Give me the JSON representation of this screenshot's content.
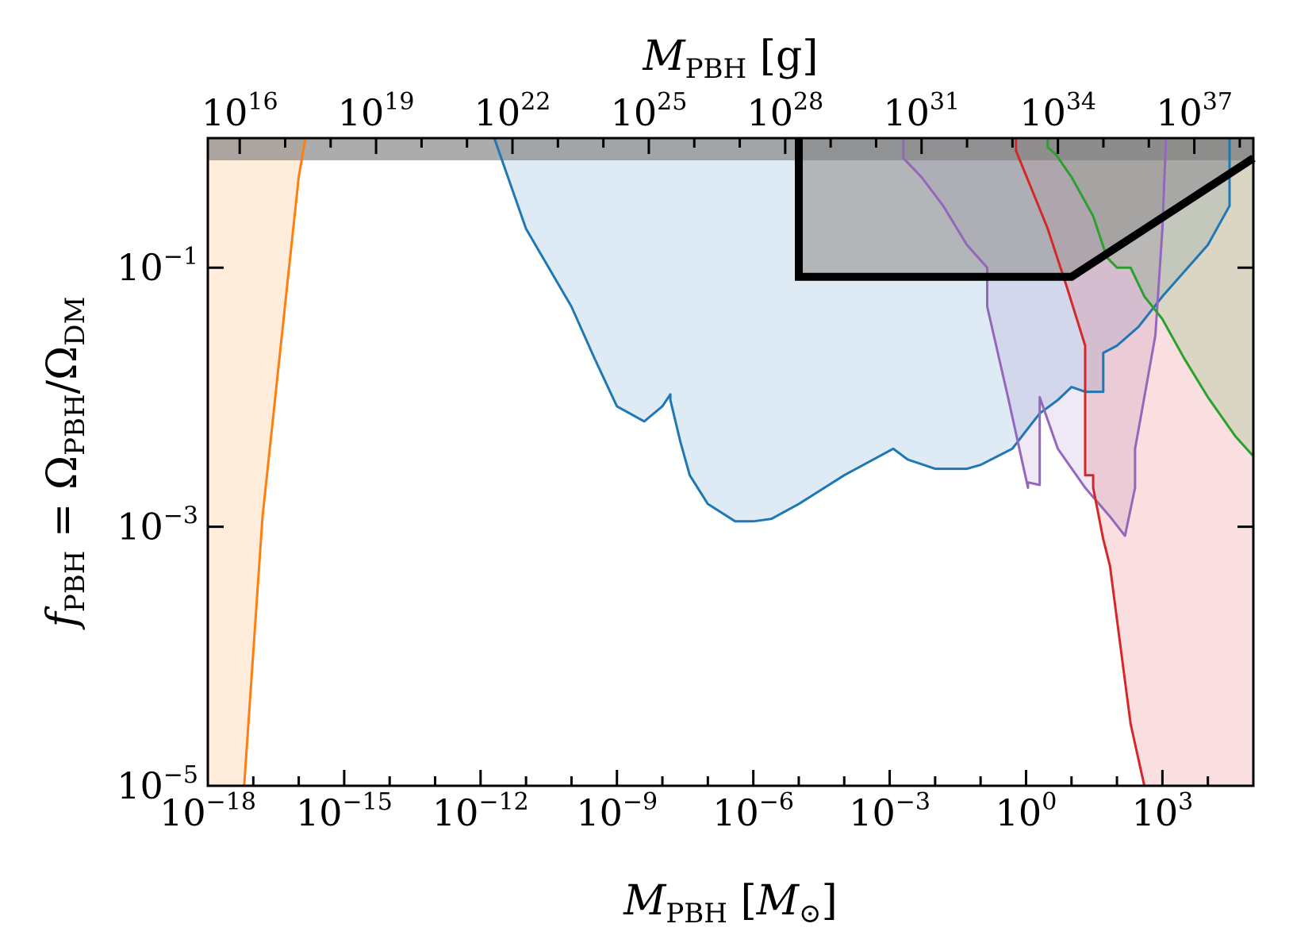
{
  "chart_data": {
    "type": "area",
    "title": "",
    "xlabel": {
      "main": "M",
      "sub": "PBH",
      "unit_main": "M",
      "unit_sub": "⊙"
    },
    "x2label": {
      "main": "M",
      "sub": "PBH",
      "unit": "g"
    },
    "ylabel": {
      "f": "f",
      "f_sub": "PBH",
      "eq": " = ",
      "omega": "Ω",
      "omega_sub1": "PBH",
      "slash": "/",
      "omega_sub2": "DM"
    },
    "xscale": "log",
    "yscale": "log",
    "xlim": [
      1e-18,
      100000.0
    ],
    "ylim": [
      1e-05,
      1
    ],
    "x_ticks": [
      {
        "base": "10",
        "exp": "−18",
        "value": 1e-18
      },
      {
        "base": "10",
        "exp": "−15",
        "value": 1e-15
      },
      {
        "base": "10",
        "exp": "−12",
        "value": 1e-12
      },
      {
        "base": "10",
        "exp": "−9",
        "value": 1e-09
      },
      {
        "base": "10",
        "exp": "−6",
        "value": 1e-06
      },
      {
        "base": "10",
        "exp": "−3",
        "value": 0.001
      },
      {
        "base": "10",
        "exp": "0",
        "value": 1
      },
      {
        "base": "10",
        "exp": "3",
        "value": 1000.0
      }
    ],
    "x2_ticks": [
      {
        "base": "10",
        "exp": "16",
        "value": 1e+16
      },
      {
        "base": "10",
        "exp": "19",
        "value": 1e+19
      },
      {
        "base": "10",
        "exp": "22",
        "value": 1e+22
      },
      {
        "base": "10",
        "exp": "25",
        "value": 1e+25
      },
      {
        "base": "10",
        "exp": "28",
        "value": 1e+28
      },
      {
        "base": "10",
        "exp": "31",
        "value": 1e+31
      },
      {
        "base": "10",
        "exp": "34",
        "value": 1e+34
      },
      {
        "base": "10",
        "exp": "37",
        "value": 1e+37
      }
    ],
    "x2_grams_per_msun": 1.989e+33,
    "y_ticks": [
      {
        "base": "10",
        "exp": "−1",
        "value": 0.1
      },
      {
        "base": "10",
        "exp": "−3",
        "value": 0.001
      },
      {
        "base": "10",
        "exp": "−5",
        "value": 1e-05
      }
    ],
    "grid": false,
    "series": [
      {
        "color": "#ff7f0e",
        "fill_alpha": 0.15,
        "x": [
          1e-18,
          6.3e-18,
          1.6e-17,
          1e-16,
          1.4e-16
        ],
        "y": [
          1e-05,
          1e-05,
          0.0012,
          0.5,
          1
        ]
      },
      {
        "color": "#1f77b4",
        "fill_alpha": 0.15,
        "x": [
          2e-12,
          1e-11,
          1e-10,
          3.2e-10,
          1e-09,
          4e-09,
          1e-08,
          1.5e-08,
          1.5e-08,
          2.5e-08,
          4e-08,
          1e-07,
          4e-07,
          1e-06,
          2.5e-06,
          1e-05,
          0.0001,
          0.0012,
          0.0025,
          0.01,
          0.05,
          0.1,
          0.5,
          1,
          2,
          5,
          10,
          20,
          50,
          50,
          100,
          300,
          1000.0,
          10000.0,
          30000.0,
          30000.0
        ],
        "y": [
          1,
          0.2,
          0.05,
          0.02,
          0.0085,
          0.0065,
          0.0085,
          0.0105,
          0.0095,
          0.0045,
          0.0025,
          0.0015,
          0.0011,
          0.0011,
          0.00115,
          0.0015,
          0.0025,
          0.004,
          0.0033,
          0.0028,
          0.0028,
          0.003,
          0.004,
          0.0055,
          0.0075,
          0.0095,
          0.012,
          0.011,
          0.011,
          0.022,
          0.025,
          0.035,
          0.06,
          0.15,
          0.3,
          1
        ]
      },
      {
        "color": "#9467bd",
        "fill_alpha": 0.15,
        "x": [
          0.002,
          0.002,
          0.005,
          0.015,
          0.05,
          0.14,
          0.14,
          0.4,
          1.1,
          1.1,
          2,
          2,
          5,
          20,
          70,
          150,
          250,
          250,
          400,
          700,
          1000,
          1200
        ],
        "y": [
          1,
          0.7,
          0.5,
          0.3,
          0.15,
          0.1,
          0.05,
          0.01,
          0.002,
          0.0022,
          0.0021,
          0.01,
          0.004,
          0.002,
          0.0012,
          0.00085,
          0.002,
          0.004,
          0.01,
          0.03,
          0.2,
          1
        ]
      },
      {
        "color": "#d62728",
        "fill_alpha": 0.15,
        "x": [
          0.6,
          0.6,
          3,
          8,
          20,
          20,
          30,
          30,
          50,
          70,
          200,
          400,
          100000.0
        ],
        "y": [
          1,
          0.8,
          0.2,
          0.07,
          0.025,
          0.0025,
          0.0025,
          0.002,
          0.0008,
          0.0005,
          3e-05,
          1e-05,
          1e-05
        ]
      },
      {
        "color": "#2ca02c",
        "fill_alpha": 0.15,
        "x": [
          3,
          3,
          4.5,
          10,
          30,
          60,
          100,
          200,
          400,
          1000.0,
          3000.0,
          10000.0,
          40000.0,
          100000.0
        ],
        "y": [
          1,
          0.85,
          0.75,
          0.5,
          0.25,
          0.12,
          0.1,
          0.1,
          0.06,
          0.04,
          0.02,
          0.01,
          0.005,
          0.0035
        ]
      },
      {
        "color": "#000000",
        "fill": "#999999",
        "fill_alpha": 0.65,
        "thick": true,
        "x": [
          1e-05,
          1e-05,
          10,
          100000.0
        ],
        "y": [
          1,
          0.085,
          0.085,
          0.7
        ]
      }
    ]
  }
}
